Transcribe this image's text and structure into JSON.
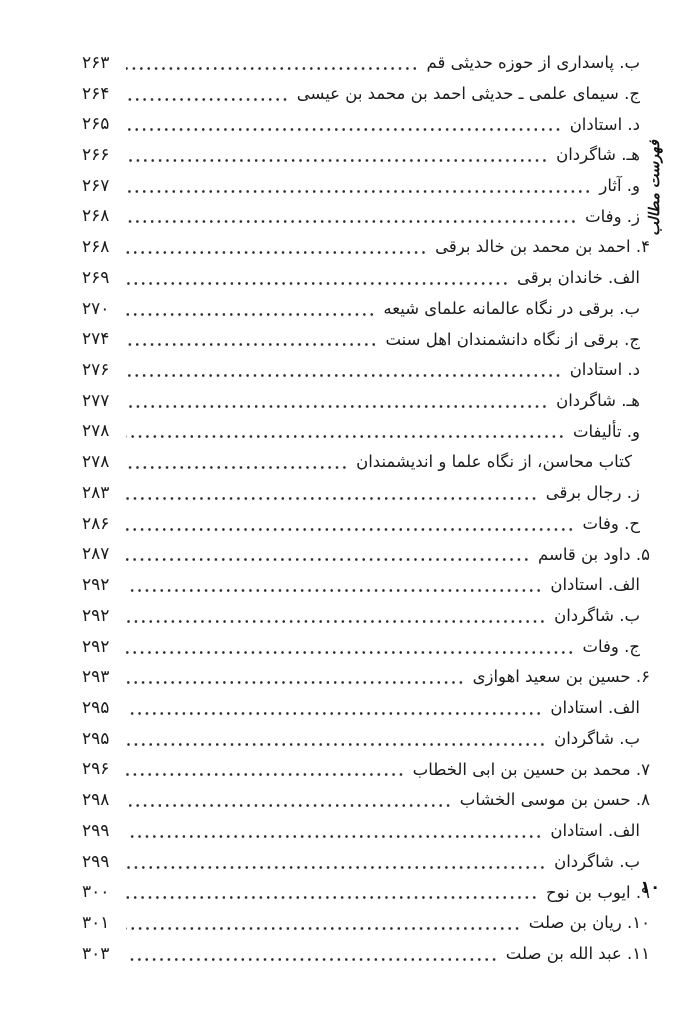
{
  "page": {
    "side_label": "فهرست مطالب",
    "folio_number": "۱۰"
  },
  "toc": {
    "entries": [
      {
        "title": "ب. پاسداری از حوزه حدیثی قم",
        "page": "۲۶۳",
        "level": 1
      },
      {
        "title": "ج. سیمای علمی ـ حدیثی احمد بن محمد بن عیسی",
        "page": "۲۶۴",
        "level": 1
      },
      {
        "title": "د. استادان",
        "page": "۲۶۵",
        "level": 1
      },
      {
        "title": "هـ. شاگردان",
        "page": "۲۶۶",
        "level": 1
      },
      {
        "title": "و. آثار",
        "page": "۲۶۷",
        "level": 1
      },
      {
        "title": "ز. وفات",
        "page": "۲۶۸",
        "level": 1
      },
      {
        "title": "۴. احمد بن محمد بن خالد برقی",
        "page": "۲۶۸",
        "level": 0
      },
      {
        "title": "الف. خاندان برقی",
        "page": "۲۶۹",
        "level": 1
      },
      {
        "title": "ب. برقی در نگاه عالمانه علمای شیعه",
        "page": "۲۷۰",
        "level": 1
      },
      {
        "title": "ج. برقی از نگاه دانشمندان اهل سنت",
        "page": "۲۷۴",
        "level": 1
      },
      {
        "title": "د. استادان",
        "page": "۲۷۶",
        "level": 1
      },
      {
        "title": "هـ. شاگردان",
        "page": "۲۷۷",
        "level": 1
      },
      {
        "title": "و. تألیفات",
        "page": "۲۷۸",
        "level": 1
      },
      {
        "title": "کتاب محاسن، از نگاه علما و اندیشمندان",
        "page": "۲۷۸",
        "level": 2
      },
      {
        "title": "ز. رجال برقی",
        "page": "۲۸۳",
        "level": 1
      },
      {
        "title": "ح. وفات",
        "page": "۲۸۶",
        "level": 1
      },
      {
        "title": "۵. داود بن قاسم",
        "page": "۲۸۷",
        "level": 0
      },
      {
        "title": "الف. استادان",
        "page": "۲۹۲",
        "level": 1
      },
      {
        "title": "ب. شاگردان",
        "page": "۲۹۲",
        "level": 1
      },
      {
        "title": "ج. وفات",
        "page": "۲۹۲",
        "level": 1
      },
      {
        "title": "۶. حسین بن سعید اهوازی",
        "page": "۲۹۳",
        "level": 0
      },
      {
        "title": "الف. استادان",
        "page": "۲۹۵",
        "level": 1
      },
      {
        "title": "ب. شاگردان",
        "page": "۲۹۵",
        "level": 1
      },
      {
        "title": "۷. محمد بن حسین بن ابی الخطاب",
        "page": "۲۹۶",
        "level": 0
      },
      {
        "title": "۸. حسن بن موسی الخشاب",
        "page": "۲۹۸",
        "level": 0
      },
      {
        "title": "الف. استادان",
        "page": "۲۹۹",
        "level": 1
      },
      {
        "title": "ب. شاگردان",
        "page": "۲۹۹",
        "level": 1
      },
      {
        "title": "۹. ایوب بن نوح",
        "page": "۳۰۰",
        "level": 0
      },
      {
        "title": "۱۰. ریان بن صلت",
        "page": "۳۰۱",
        "level": 0
      },
      {
        "title": "۱۱. عبد الله بن صلت",
        "page": "۳۰۳",
        "level": 0
      }
    ]
  }
}
